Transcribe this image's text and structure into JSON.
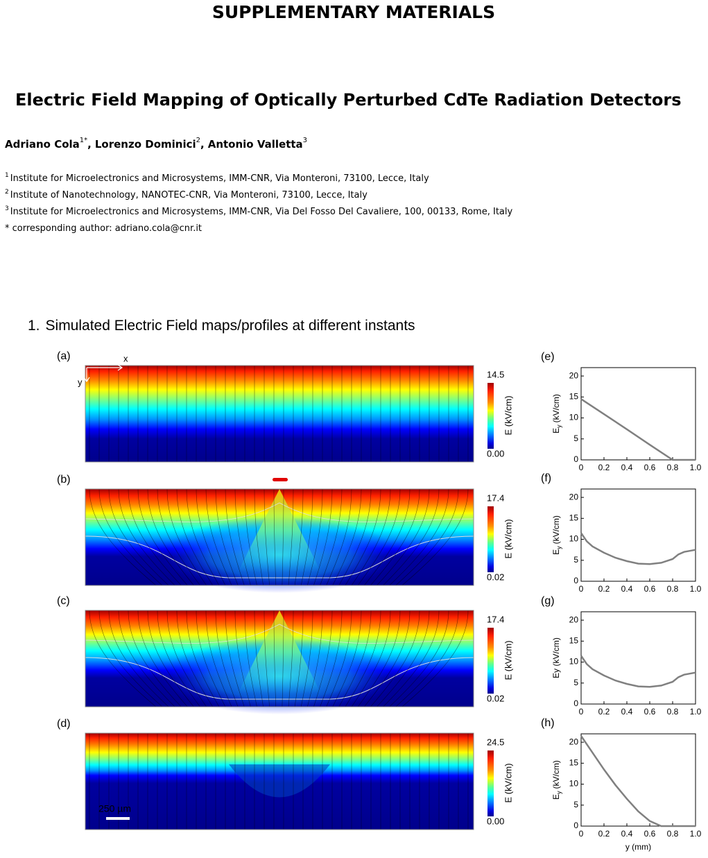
{
  "header": {
    "title": "SUPPLEMENTARY MATERIALS"
  },
  "paper": {
    "title": "Electric Field Mapping of Optically Perturbed CdTe Radiation Detectors",
    "authors": [
      {
        "name": "Adriano Cola",
        "sup": "1*",
        "sep": ","
      },
      {
        "name": "Lorenzo Dominici",
        "sup": "2",
        "sep": ","
      },
      {
        "name": "Antonio Valletta",
        "sup": "3"
      }
    ],
    "affiliations": [
      {
        "sup": "1",
        "text": "Institute for Microelectronics and Microsystems, IMM-CNR, Via Monteroni, 73100, Lecce, Italy"
      },
      {
        "sup": "2",
        "text": "Institute of Nanotechnology, NANOTEC-CNR, Via Monteroni, 73100, Lecce, Italy"
      },
      {
        "sup": "3",
        "text": "Institute for Microelectronics and Microsystems, IMM-CNR, Via Del Fosso Del Cavaliere, 100, 00133, Rome, Italy"
      },
      {
        "text": "* corresponding author: adriano.cola@cnr.it"
      }
    ]
  },
  "section": {
    "number": "1.",
    "title": "Simulated Electric Field maps/profiles at different instants"
  },
  "figure": {
    "axis_x": "x",
    "axis_y": "y",
    "scale_bar": "250 µm",
    "maps": [
      {
        "label": "(a)",
        "cbar_max": "14.5",
        "cbar_min": "0.00",
        "cbar_label": "E (kV/cm)"
      },
      {
        "label": "(b)",
        "cbar_max": "17.4",
        "cbar_min": "0.02",
        "cbar_label": "E (kV/cm)"
      },
      {
        "label": "(c)",
        "cbar_max": "17.4",
        "cbar_min": "0.02",
        "cbar_label": "E (kV/cm)"
      },
      {
        "label": "(d)",
        "cbar_max": "24.5",
        "cbar_min": "0.00",
        "cbar_label": "E (kV/cm)"
      }
    ],
    "profile_xlim": [
      0,
      1
    ],
    "profile_ylim": [
      0,
      22
    ],
    "profile_xticks": [
      0,
      0.2,
      0.4,
      0.6,
      0.8,
      {
        "value": 1,
        "label": "1.0"
      }
    ],
    "profile_yticks": [
      0,
      5,
      10,
      15,
      20
    ],
    "profile_xlabel": "y (mm)",
    "profiles": [
      {
        "label": "(e)",
        "ylabel": [
          "E",
          "y",
          "(kV/cm)"
        ],
        "x": [
          0,
          0.2,
          0.4,
          0.6,
          0.8,
          0.9,
          1.0
        ],
        "y": [
          14.5,
          10.9,
          7.3,
          3.6,
          0,
          0,
          0
        ]
      },
      {
        "label": "(f)",
        "ylabel": [
          "E",
          "y",
          "(kV/cm)"
        ],
        "x": [
          0,
          0.05,
          0.1,
          0.2,
          0.3,
          0.4,
          0.5,
          0.6,
          0.7,
          0.8,
          0.85,
          0.9,
          1.0
        ],
        "y": [
          11.5,
          9.5,
          8.3,
          6.8,
          5.6,
          4.8,
          4.2,
          4.1,
          4.4,
          5.3,
          6.4,
          7,
          7.5
        ]
      },
      {
        "label": "(g)",
        "ylabel": [
          "Ey (kV/cm)"
        ],
        "x": [
          0,
          0.05,
          0.1,
          0.2,
          0.3,
          0.4,
          0.5,
          0.6,
          0.7,
          0.8,
          0.85,
          0.9,
          1.0
        ],
        "y": [
          11.5,
          9.5,
          8.3,
          6.8,
          5.6,
          4.8,
          4.2,
          4.1,
          4.4,
          5.3,
          6.4,
          7,
          7.5
        ]
      },
      {
        "label": "(h)",
        "ylabel": [
          "E",
          "y",
          "(kV/cm)"
        ],
        "x": [
          0,
          0.1,
          0.2,
          0.3,
          0.4,
          0.5,
          0.6,
          0.7,
          0.8,
          1.0
        ],
        "y": [
          21.5,
          17.5,
          13.5,
          9.8,
          6.5,
          3.5,
          1.2,
          0,
          0,
          0
        ]
      }
    ]
  }
}
